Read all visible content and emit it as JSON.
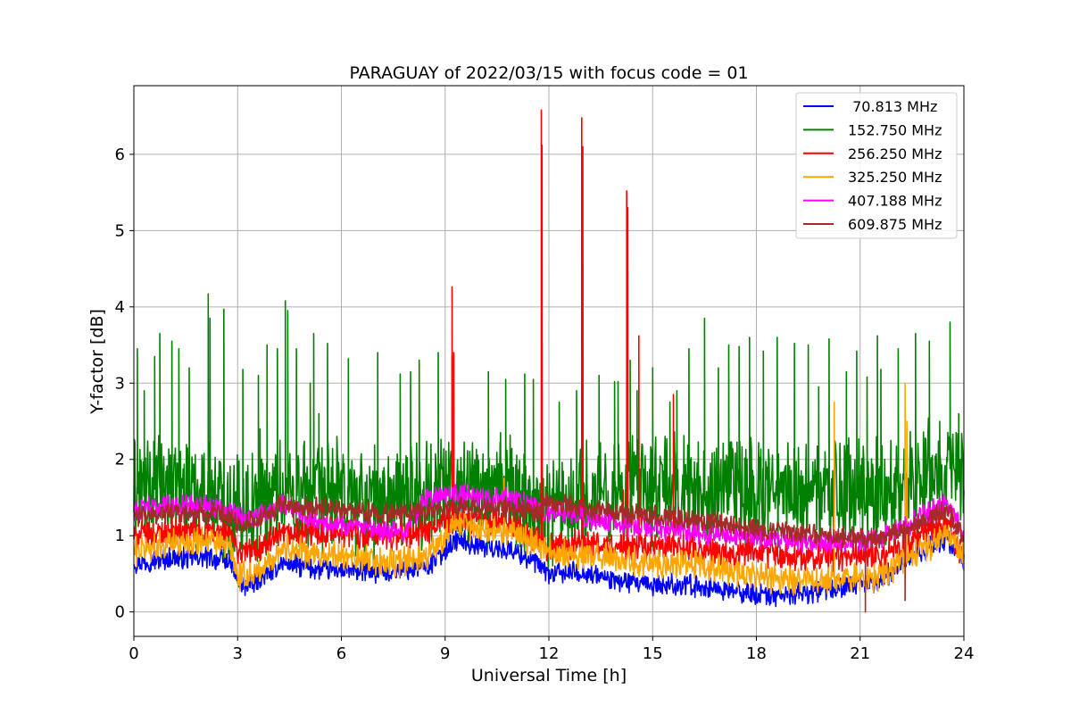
{
  "chart_data": {
    "type": "line",
    "title": "PARAGUAY of 2022/03/15 with focus code = 01",
    "xlabel": "Universal Time [h]",
    "ylabel": "Y-factor [dB]",
    "xlim": [
      0,
      24
    ],
    "ylim": [
      -0.32,
      6.9
    ],
    "xticks": [
      0,
      3,
      6,
      9,
      12,
      15,
      18,
      21,
      24
    ],
    "yticks": [
      0,
      1,
      2,
      3,
      4,
      5,
      6
    ],
    "grid": true,
    "legend_position": "top-right",
    "series": [
      {
        "name": " 70.813 MHz",
        "color": "#0000ff",
        "base": [
          [
            0,
            0.65
          ],
          [
            1,
            0.7
          ],
          [
            2,
            0.72
          ],
          [
            2.8,
            0.65
          ],
          [
            3.1,
            0.32
          ],
          [
            3.6,
            0.4
          ],
          [
            4.3,
            0.65
          ],
          [
            5,
            0.58
          ],
          [
            6,
            0.55
          ],
          [
            7,
            0.52
          ],
          [
            7.8,
            0.55
          ],
          [
            8.5,
            0.6
          ],
          [
            9.3,
            0.95
          ],
          [
            10.2,
            0.85
          ],
          [
            11,
            0.8
          ],
          [
            11.6,
            0.65
          ],
          [
            12,
            0.5
          ],
          [
            13,
            0.52
          ],
          [
            14,
            0.4
          ],
          [
            15,
            0.35
          ],
          [
            16,
            0.35
          ],
          [
            17,
            0.3
          ],
          [
            18,
            0.22
          ],
          [
            19,
            0.22
          ],
          [
            20,
            0.3
          ],
          [
            21,
            0.35
          ],
          [
            21.5,
            0.4
          ],
          [
            22,
            0.55
          ],
          [
            22.4,
            0.7
          ],
          [
            23,
            0.85
          ],
          [
            23.5,
            0.95
          ],
          [
            24,
            0.7
          ]
        ],
        "noise": 0.06,
        "spikes": []
      },
      {
        "name": "152.750 MHz",
        "color": "#008000",
        "base": [
          [
            0,
            1.55
          ],
          [
            1,
            1.65
          ],
          [
            2,
            1.6
          ],
          [
            3,
            1.35
          ],
          [
            3.5,
            1.4
          ],
          [
            4.3,
            1.6
          ],
          [
            5,
            1.55
          ],
          [
            6,
            1.55
          ],
          [
            7,
            1.45
          ],
          [
            8,
            1.5
          ],
          [
            9,
            1.65
          ],
          [
            10,
            1.65
          ],
          [
            11,
            1.55
          ],
          [
            11.8,
            1.4
          ],
          [
            12,
            1.35
          ],
          [
            13,
            1.55
          ],
          [
            14,
            1.6
          ],
          [
            15,
            1.6
          ],
          [
            16,
            1.65
          ],
          [
            17,
            1.6
          ],
          [
            18,
            1.55
          ],
          [
            19,
            1.6
          ],
          [
            20,
            1.55
          ],
          [
            21,
            1.55
          ],
          [
            22,
            1.6
          ],
          [
            23,
            1.85
          ],
          [
            23.5,
            1.95
          ],
          [
            24,
            1.6
          ]
        ],
        "noise": 0.3,
        "spikes": [
          [
            0.1,
            3.45
          ],
          [
            0.3,
            2.9
          ],
          [
            0.6,
            3.35
          ],
          [
            0.75,
            3.65
          ],
          [
            1.1,
            3.55
          ],
          [
            1.3,
            3.45
          ],
          [
            1.6,
            3.2
          ],
          [
            2.15,
            4.17
          ],
          [
            2.2,
            3.85
          ],
          [
            2.6,
            3.97
          ],
          [
            3.15,
            3.18
          ],
          [
            3.6,
            3.1
          ],
          [
            3.65,
            2.4
          ],
          [
            3.85,
            3.5
          ],
          [
            4.15,
            3.45
          ],
          [
            4.38,
            4.08
          ],
          [
            4.45,
            3.95
          ],
          [
            4.7,
            3.45
          ],
          [
            5.1,
            3.0
          ],
          [
            5.2,
            3.65
          ],
          [
            5.35,
            2.6
          ],
          [
            5.6,
            3.52
          ],
          [
            6.2,
            3.32
          ],
          [
            7.05,
            3.4
          ],
          [
            7.7,
            3.12
          ],
          [
            8.0,
            3.15
          ],
          [
            8.25,
            3.3
          ],
          [
            8.8,
            3.4
          ],
          [
            9.2,
            3.35
          ],
          [
            10.25,
            3.15
          ],
          [
            10.6,
            2.35
          ],
          [
            10.75,
            3.05
          ],
          [
            11.3,
            3.12
          ],
          [
            11.55,
            3.05
          ],
          [
            11.8,
            2.9
          ],
          [
            12.3,
            2.75
          ],
          [
            12.8,
            2.9
          ],
          [
            13.45,
            3.1
          ],
          [
            13.9,
            3.02
          ],
          [
            14.0,
            3.02
          ],
          [
            14.35,
            3.3
          ],
          [
            14.55,
            2.9
          ],
          [
            15.0,
            3.2
          ],
          [
            15.5,
            2.75
          ],
          [
            15.7,
            2.9
          ],
          [
            16.05,
            3.45
          ],
          [
            16.5,
            3.85
          ],
          [
            16.9,
            3.2
          ],
          [
            17.2,
            3.5
          ],
          [
            17.5,
            3.48
          ],
          [
            17.8,
            3.6
          ],
          [
            18.2,
            3.42
          ],
          [
            18.6,
            3.6
          ],
          [
            19.1,
            3.52
          ],
          [
            19.5,
            3.5
          ],
          [
            19.8,
            2.95
          ],
          [
            20.1,
            3.58
          ],
          [
            20.6,
            3.15
          ],
          [
            20.9,
            3.42
          ],
          [
            21.2,
            3.08
          ],
          [
            21.5,
            3.62
          ],
          [
            21.6,
            3.18
          ],
          [
            22.1,
            3.45
          ],
          [
            22.6,
            3.65
          ],
          [
            23.0,
            3.55
          ],
          [
            23.3,
            2.5
          ],
          [
            23.6,
            3.8
          ],
          [
            23.85,
            2.6
          ]
        ]
      },
      {
        "name": "256.250 MHz",
        "color": "#ff0000",
        "base": [
          [
            0,
            1.0
          ],
          [
            1,
            1.05
          ],
          [
            2,
            1.05
          ],
          [
            2.8,
            1.0
          ],
          [
            3,
            0.8
          ],
          [
            3.5,
            0.8
          ],
          [
            4.3,
            1.0
          ],
          [
            5,
            1.05
          ],
          [
            6,
            1.05
          ],
          [
            7,
            1.0
          ],
          [
            7.8,
            1.0
          ],
          [
            8.5,
            1.05
          ],
          [
            9.3,
            1.25
          ],
          [
            10,
            1.2
          ],
          [
            11,
            1.15
          ],
          [
            11.6,
            0.95
          ],
          [
            12,
            0.85
          ],
          [
            13,
            0.9
          ],
          [
            14,
            0.85
          ],
          [
            15,
            0.85
          ],
          [
            16,
            0.85
          ],
          [
            17,
            0.8
          ],
          [
            18,
            0.78
          ],
          [
            19,
            0.72
          ],
          [
            20,
            0.72
          ],
          [
            21,
            0.75
          ],
          [
            21.5,
            0.75
          ],
          [
            22,
            0.85
          ],
          [
            22.4,
            0.9
          ],
          [
            23,
            1.1
          ],
          [
            23.5,
            1.2
          ],
          [
            24,
            0.7
          ]
        ],
        "noise": 0.08,
        "spikes": [
          [
            9.2,
            4.26
          ],
          [
            9.25,
            3.4
          ],
          [
            11.78,
            6.58
          ],
          [
            11.8,
            6.12
          ],
          [
            12.95,
            6.48
          ],
          [
            12.98,
            6.1
          ],
          [
            14.25,
            5.52
          ],
          [
            14.28,
            5.3
          ],
          [
            14.6,
            3.62
          ],
          [
            15.6,
            2.85
          ],
          [
            14.15,
            1.6
          ]
        ]
      },
      {
        "name": "325.250 MHz",
        "color": "#ffa500",
        "base": [
          [
            0,
            0.8
          ],
          [
            1,
            0.9
          ],
          [
            2,
            0.95
          ],
          [
            2.8,
            0.85
          ],
          [
            3,
            0.45
          ],
          [
            3.6,
            0.52
          ],
          [
            4.3,
            0.85
          ],
          [
            5,
            0.78
          ],
          [
            6,
            0.72
          ],
          [
            7,
            0.65
          ],
          [
            7.8,
            0.65
          ],
          [
            8.5,
            0.75
          ],
          [
            9.3,
            1.15
          ],
          [
            10,
            1.1
          ],
          [
            11,
            1.05
          ],
          [
            11.6,
            0.9
          ],
          [
            12,
            0.8
          ],
          [
            13,
            0.75
          ],
          [
            14,
            0.7
          ],
          [
            15,
            0.65
          ],
          [
            16,
            0.62
          ],
          [
            17,
            0.55
          ],
          [
            18,
            0.45
          ],
          [
            19,
            0.4
          ],
          [
            20,
            0.42
          ],
          [
            21,
            0.48
          ],
          [
            21.5,
            0.45
          ],
          [
            22,
            0.6
          ],
          [
            22.4,
            0.7
          ],
          [
            23,
            0.85
          ],
          [
            23.5,
            1.0
          ],
          [
            24,
            0.7
          ]
        ],
        "noise": 0.08,
        "spikes": [
          [
            10.7,
            1.75
          ],
          [
            20.25,
            2.75
          ],
          [
            22.3,
            3.0
          ],
          [
            22.35,
            2.5
          ]
        ]
      },
      {
        "name": "407.188 MHz",
        "color": "#ff00ff",
        "base": [
          [
            0,
            1.35
          ],
          [
            1,
            1.4
          ],
          [
            2,
            1.4
          ],
          [
            2.8,
            1.35
          ],
          [
            3.1,
            1.25
          ],
          [
            3.6,
            1.25
          ],
          [
            4.3,
            1.45
          ],
          [
            5,
            1.25
          ],
          [
            6,
            1.15
          ],
          [
            7,
            1.05
          ],
          [
            7.8,
            1.05
          ],
          [
            8.5,
            1.5
          ],
          [
            9.3,
            1.55
          ],
          [
            10,
            1.5
          ],
          [
            11,
            1.48
          ],
          [
            11.6,
            1.4
          ],
          [
            12,
            1.3
          ],
          [
            13,
            1.25
          ],
          [
            14,
            1.15
          ],
          [
            15,
            1.1
          ],
          [
            16,
            1.05
          ],
          [
            17,
            1.0
          ],
          [
            18,
            0.98
          ],
          [
            19,
            0.95
          ],
          [
            20,
            0.92
          ],
          [
            21,
            0.92
          ],
          [
            21.5,
            0.95
          ],
          [
            22,
            1.05
          ],
          [
            22.4,
            1.15
          ],
          [
            23,
            1.3
          ],
          [
            23.5,
            1.45
          ],
          [
            24,
            1.0
          ]
        ],
        "noise": 0.06,
        "spikes": []
      },
      {
        "name": "609.875 MHz",
        "color": "#a52a2a",
        "base": [
          [
            0,
            1.25
          ],
          [
            1,
            1.3
          ],
          [
            2,
            1.3
          ],
          [
            2.8,
            1.25
          ],
          [
            3.1,
            1.15
          ],
          [
            3.6,
            1.2
          ],
          [
            4.3,
            1.4
          ],
          [
            5,
            1.38
          ],
          [
            6,
            1.35
          ],
          [
            7,
            1.28
          ],
          [
            7.8,
            1.3
          ],
          [
            8.5,
            1.32
          ],
          [
            9.3,
            1.38
          ],
          [
            10,
            1.38
          ],
          [
            11,
            1.35
          ],
          [
            11.6,
            1.3
          ],
          [
            12,
            1.45
          ],
          [
            13,
            1.35
          ],
          [
            14,
            1.3
          ],
          [
            15,
            1.25
          ],
          [
            16,
            1.22
          ],
          [
            17,
            1.15
          ],
          [
            18,
            1.08
          ],
          [
            19,
            1.05
          ],
          [
            20,
            1.0
          ],
          [
            21,
            0.95
          ],
          [
            21.5,
            0.95
          ],
          [
            22,
            1.05
          ],
          [
            22.4,
            1.1
          ],
          [
            23,
            1.25
          ],
          [
            23.5,
            1.35
          ],
          [
            24,
            0.95
          ]
        ],
        "noise": 0.06,
        "spikes": [
          [
            21.15,
            0.0
          ],
          [
            22.3,
            0.15
          ]
        ]
      }
    ]
  }
}
